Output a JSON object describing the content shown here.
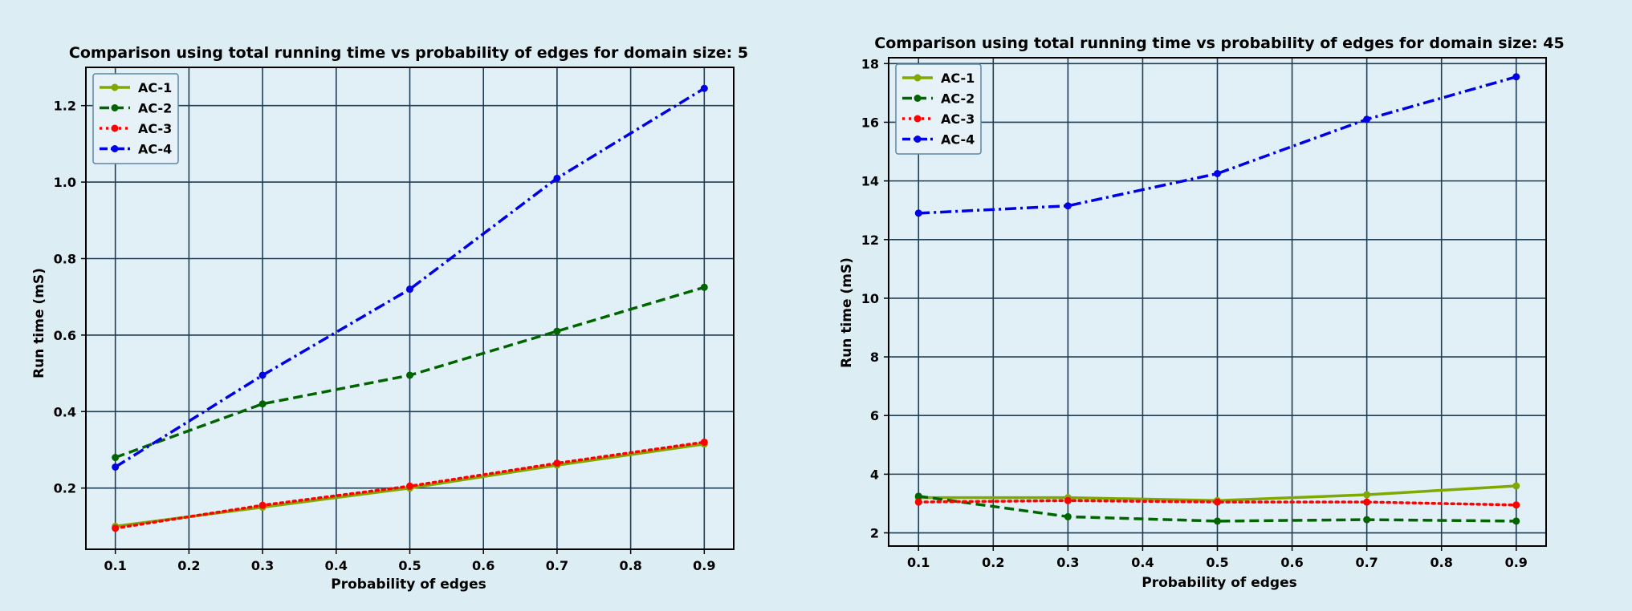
{
  "chart_data": [
    {
      "type": "line",
      "title": "Comparison using total running time vs probability of edges for domain size: 5",
      "xlabel": "Probability of edges",
      "ylabel": "Run time (mS)",
      "xlim": [
        0.06,
        0.94
      ],
      "ylim": [
        0.04,
        1.3
      ],
      "xticks": [
        0.1,
        0.2,
        0.3,
        0.4,
        0.5,
        0.6,
        0.7,
        0.8,
        0.9
      ],
      "yticks": [
        0.2,
        0.4,
        0.6,
        0.8,
        1.0,
        1.2
      ],
      "xtick_labels": [
        "0.1",
        "0.2",
        "0.3",
        "0.4",
        "0.5",
        "0.6",
        "0.7",
        "0.8",
        "0.9"
      ],
      "ytick_labels": [
        "0.2",
        "0.4",
        "0.6",
        "0.8",
        "1.0",
        "1.2"
      ],
      "grid": true,
      "legend_position": "top-left",
      "x": [
        0.1,
        0.3,
        0.5,
        0.7,
        0.9
      ],
      "series": [
        {
          "name": "AC-1",
          "color": "#80a800",
          "style": "solid",
          "values": [
            0.1,
            0.15,
            0.2,
            0.26,
            0.315
          ]
        },
        {
          "name": "AC-2",
          "color": "#006400",
          "style": "dashed",
          "values": [
            0.28,
            0.42,
            0.495,
            0.61,
            0.725
          ]
        },
        {
          "name": "AC-3",
          "color": "#ff0000",
          "style": "dotted",
          "values": [
            0.095,
            0.155,
            0.205,
            0.265,
            0.32
          ]
        },
        {
          "name": "AC-4",
          "color": "#0000e6",
          "style": "dashdot",
          "values": [
            0.255,
            0.495,
            0.72,
            1.01,
            1.245
          ]
        }
      ]
    },
    {
      "type": "line",
      "title": "Comparison using total running time vs probability of edges for domain size: 45",
      "xlabel": "Probability of edges",
      "ylabel": "Run time (mS)",
      "xlim": [
        0.06,
        0.94
      ],
      "ylim": [
        1.55,
        18.2
      ],
      "xticks": [
        0.1,
        0.2,
        0.3,
        0.4,
        0.5,
        0.6,
        0.7,
        0.8,
        0.9
      ],
      "yticks": [
        2,
        4,
        6,
        8,
        10,
        12,
        14,
        16,
        18
      ],
      "xtick_labels": [
        "0.1",
        "0.2",
        "0.3",
        "0.4",
        "0.5",
        "0.6",
        "0.7",
        "0.8",
        "0.9"
      ],
      "ytick_labels": [
        "2",
        "4",
        "6",
        "8",
        "10",
        "12",
        "14",
        "16",
        "18"
      ],
      "grid": true,
      "legend_position": "top-left",
      "x": [
        0.1,
        0.3,
        0.5,
        0.7,
        0.9
      ],
      "series": [
        {
          "name": "AC-1",
          "color": "#80a800",
          "style": "solid",
          "values": [
            3.2,
            3.2,
            3.1,
            3.3,
            3.6
          ]
        },
        {
          "name": "AC-2",
          "color": "#006400",
          "style": "dashed",
          "values": [
            3.25,
            2.55,
            2.4,
            2.45,
            2.4
          ]
        },
        {
          "name": "AC-3",
          "color": "#ff0000",
          "style": "dotted",
          "values": [
            3.05,
            3.1,
            3.05,
            3.05,
            2.95
          ]
        },
        {
          "name": "AC-4",
          "color": "#0000e6",
          "style": "dashdot",
          "values": [
            12.9,
            13.15,
            14.25,
            16.1,
            17.55
          ]
        }
      ]
    }
  ]
}
